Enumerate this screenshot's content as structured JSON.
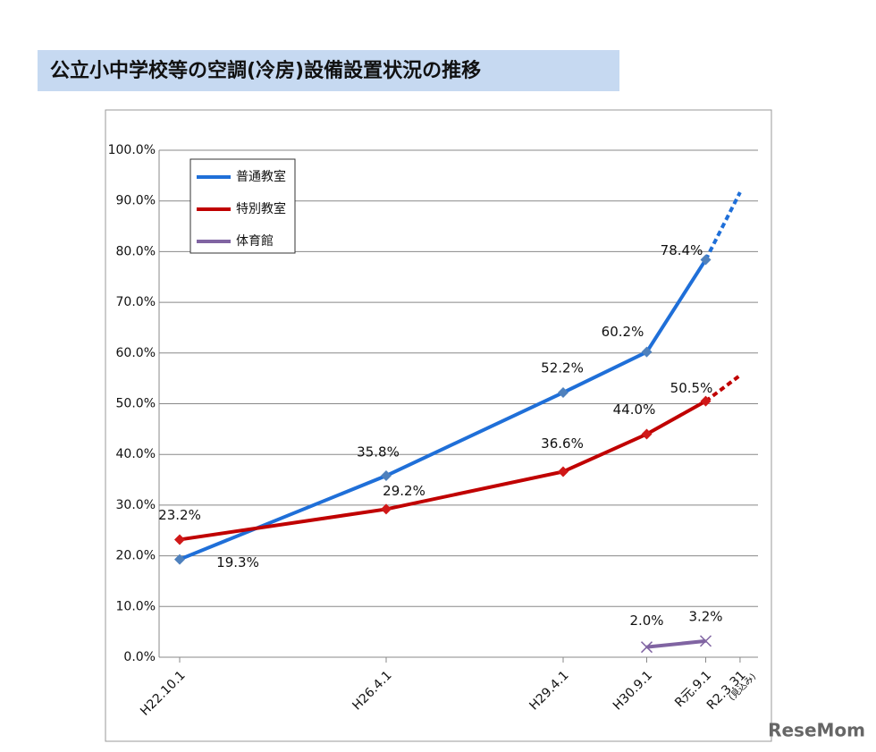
{
  "chart_data": {
    "type": "line",
    "title": "公立小中学校等の空調(冷房)設備設置状況の推移",
    "categories": [
      "H22.10.1",
      "H26.4.1",
      "H29.4.1",
      "H30.9.1",
      "R元.9.1",
      "R2.3.31"
    ],
    "category_note": "(見込み)",
    "projected_from_index": 4,
    "series": [
      {
        "name": "普通教室",
        "color": "#1f6fd8",
        "marker_color": "#4f81bd",
        "marker": "diamond",
        "values": [
          19.3,
          35.8,
          52.2,
          60.2,
          78.4,
          91.7
        ],
        "value_labels": [
          "19.3%",
          "35.8%",
          "52.2%",
          "60.2%",
          "78.4%",
          null
        ]
      },
      {
        "name": "特別教室",
        "color": "#c00000",
        "marker_color": "#d01818",
        "marker": "diamond",
        "values": [
          23.2,
          29.2,
          36.6,
          44.0,
          50.5,
          55.6
        ],
        "value_labels": [
          "23.2%",
          "29.2%",
          "36.6%",
          "44.0%",
          "50.5%",
          null
        ]
      },
      {
        "name": "体育館",
        "color": "#8064a2",
        "marker_color": "#8064a2",
        "marker": "x",
        "values": [
          null,
          null,
          null,
          2.0,
          3.2,
          null
        ],
        "value_labels": [
          null,
          null,
          null,
          "2.0%",
          "3.2%",
          null
        ]
      }
    ],
    "ylim": [
      0,
      100
    ],
    "yticks": [
      {
        "value": 0,
        "label": "0.0%"
      },
      {
        "value": 10,
        "label": "10.0%"
      },
      {
        "value": 20,
        "label": "20.0%"
      },
      {
        "value": 30,
        "label": "30.0%"
      },
      {
        "value": 40,
        "label": "40.0%"
      },
      {
        "value": 50,
        "label": "50.0%"
      },
      {
        "value": 60,
        "label": "60.0%"
      },
      {
        "value": 70,
        "label": "70.0%"
      },
      {
        "value": 80,
        "label": "80.0%"
      },
      {
        "value": 90,
        "label": "90.0%"
      },
      {
        "value": 100,
        "label": "100.0%"
      }
    ],
    "grid": true,
    "legend": "top-left",
    "watermark": "ReseMom"
  }
}
